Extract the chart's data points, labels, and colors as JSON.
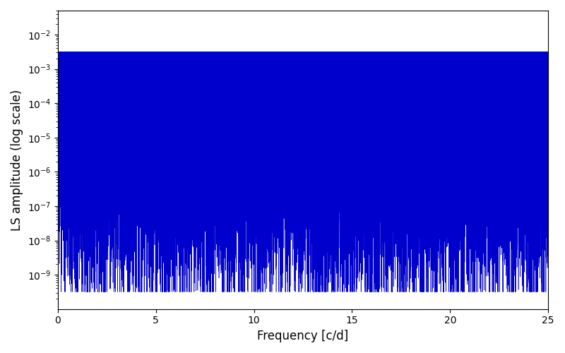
{
  "title": "",
  "xlabel": "Frequency [c/d]",
  "ylabel": "LS amplitude (log scale)",
  "xlim": [
    0,
    25
  ],
  "yticks": [
    1e-09,
    1e-08,
    1e-07,
    1e-06,
    1e-05,
    0.0001,
    0.001,
    0.01
  ],
  "xticks": [
    0,
    5,
    10,
    15,
    20,
    25
  ],
  "line_color": "#0000cc",
  "background_color": "#ffffff",
  "figsize": [
    8.0,
    5.0
  ],
  "dpi": 100,
  "n_points": 25000,
  "freq_max": 25.0,
  "seed": 12345
}
